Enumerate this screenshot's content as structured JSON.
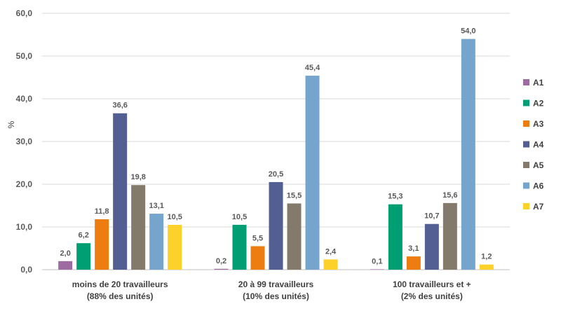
{
  "chart_data": {
    "type": "bar",
    "ylabel": "%",
    "ylim": [
      0,
      60
    ],
    "yticks": [
      "0,0",
      "10,0",
      "20,0",
      "30,0",
      "40,0",
      "50,0",
      "60,0"
    ],
    "grid": true,
    "legend_position": "right",
    "categories": [
      [
        "moins de 20 travailleurs",
        "(88% des unités)"
      ],
      [
        "20 à 99 travailleurs",
        "(10% des unités)"
      ],
      [
        "100 travailleurs et +",
        "(2% des unités)"
      ]
    ],
    "series": [
      {
        "name": "A1",
        "color": "#9E6BA1",
        "values": [
          2.0,
          0.2,
          0.1
        ],
        "labels": [
          "2,0",
          "0,2",
          "0,1"
        ]
      },
      {
        "name": "A2",
        "color": "#009E73",
        "values": [
          6.2,
          10.5,
          15.3
        ],
        "labels": [
          "6,2",
          "10,5",
          "15,3"
        ]
      },
      {
        "name": "A3",
        "color": "#EE7D11",
        "values": [
          11.8,
          5.5,
          3.1
        ],
        "labels": [
          "11,8",
          "5,5",
          "3,1"
        ]
      },
      {
        "name": "A4",
        "color": "#535E92",
        "values": [
          36.6,
          20.5,
          10.7
        ],
        "labels": [
          "36,6",
          "20,5",
          "10,7"
        ]
      },
      {
        "name": "A5",
        "color": "#847A6B",
        "values": [
          19.8,
          15.5,
          15.6
        ],
        "labels": [
          "19,8",
          "15,5",
          "15,6"
        ]
      },
      {
        "name": "A6",
        "color": "#75A5CC",
        "values": [
          13.1,
          45.4,
          54.0
        ],
        "labels": [
          "13,1",
          "45,4",
          "54,0"
        ]
      },
      {
        "name": "A7",
        "color": "#FCD12A",
        "values": [
          10.5,
          2.4,
          1.2
        ],
        "labels": [
          "10,5",
          "2,4",
          "1,2"
        ]
      }
    ]
  }
}
